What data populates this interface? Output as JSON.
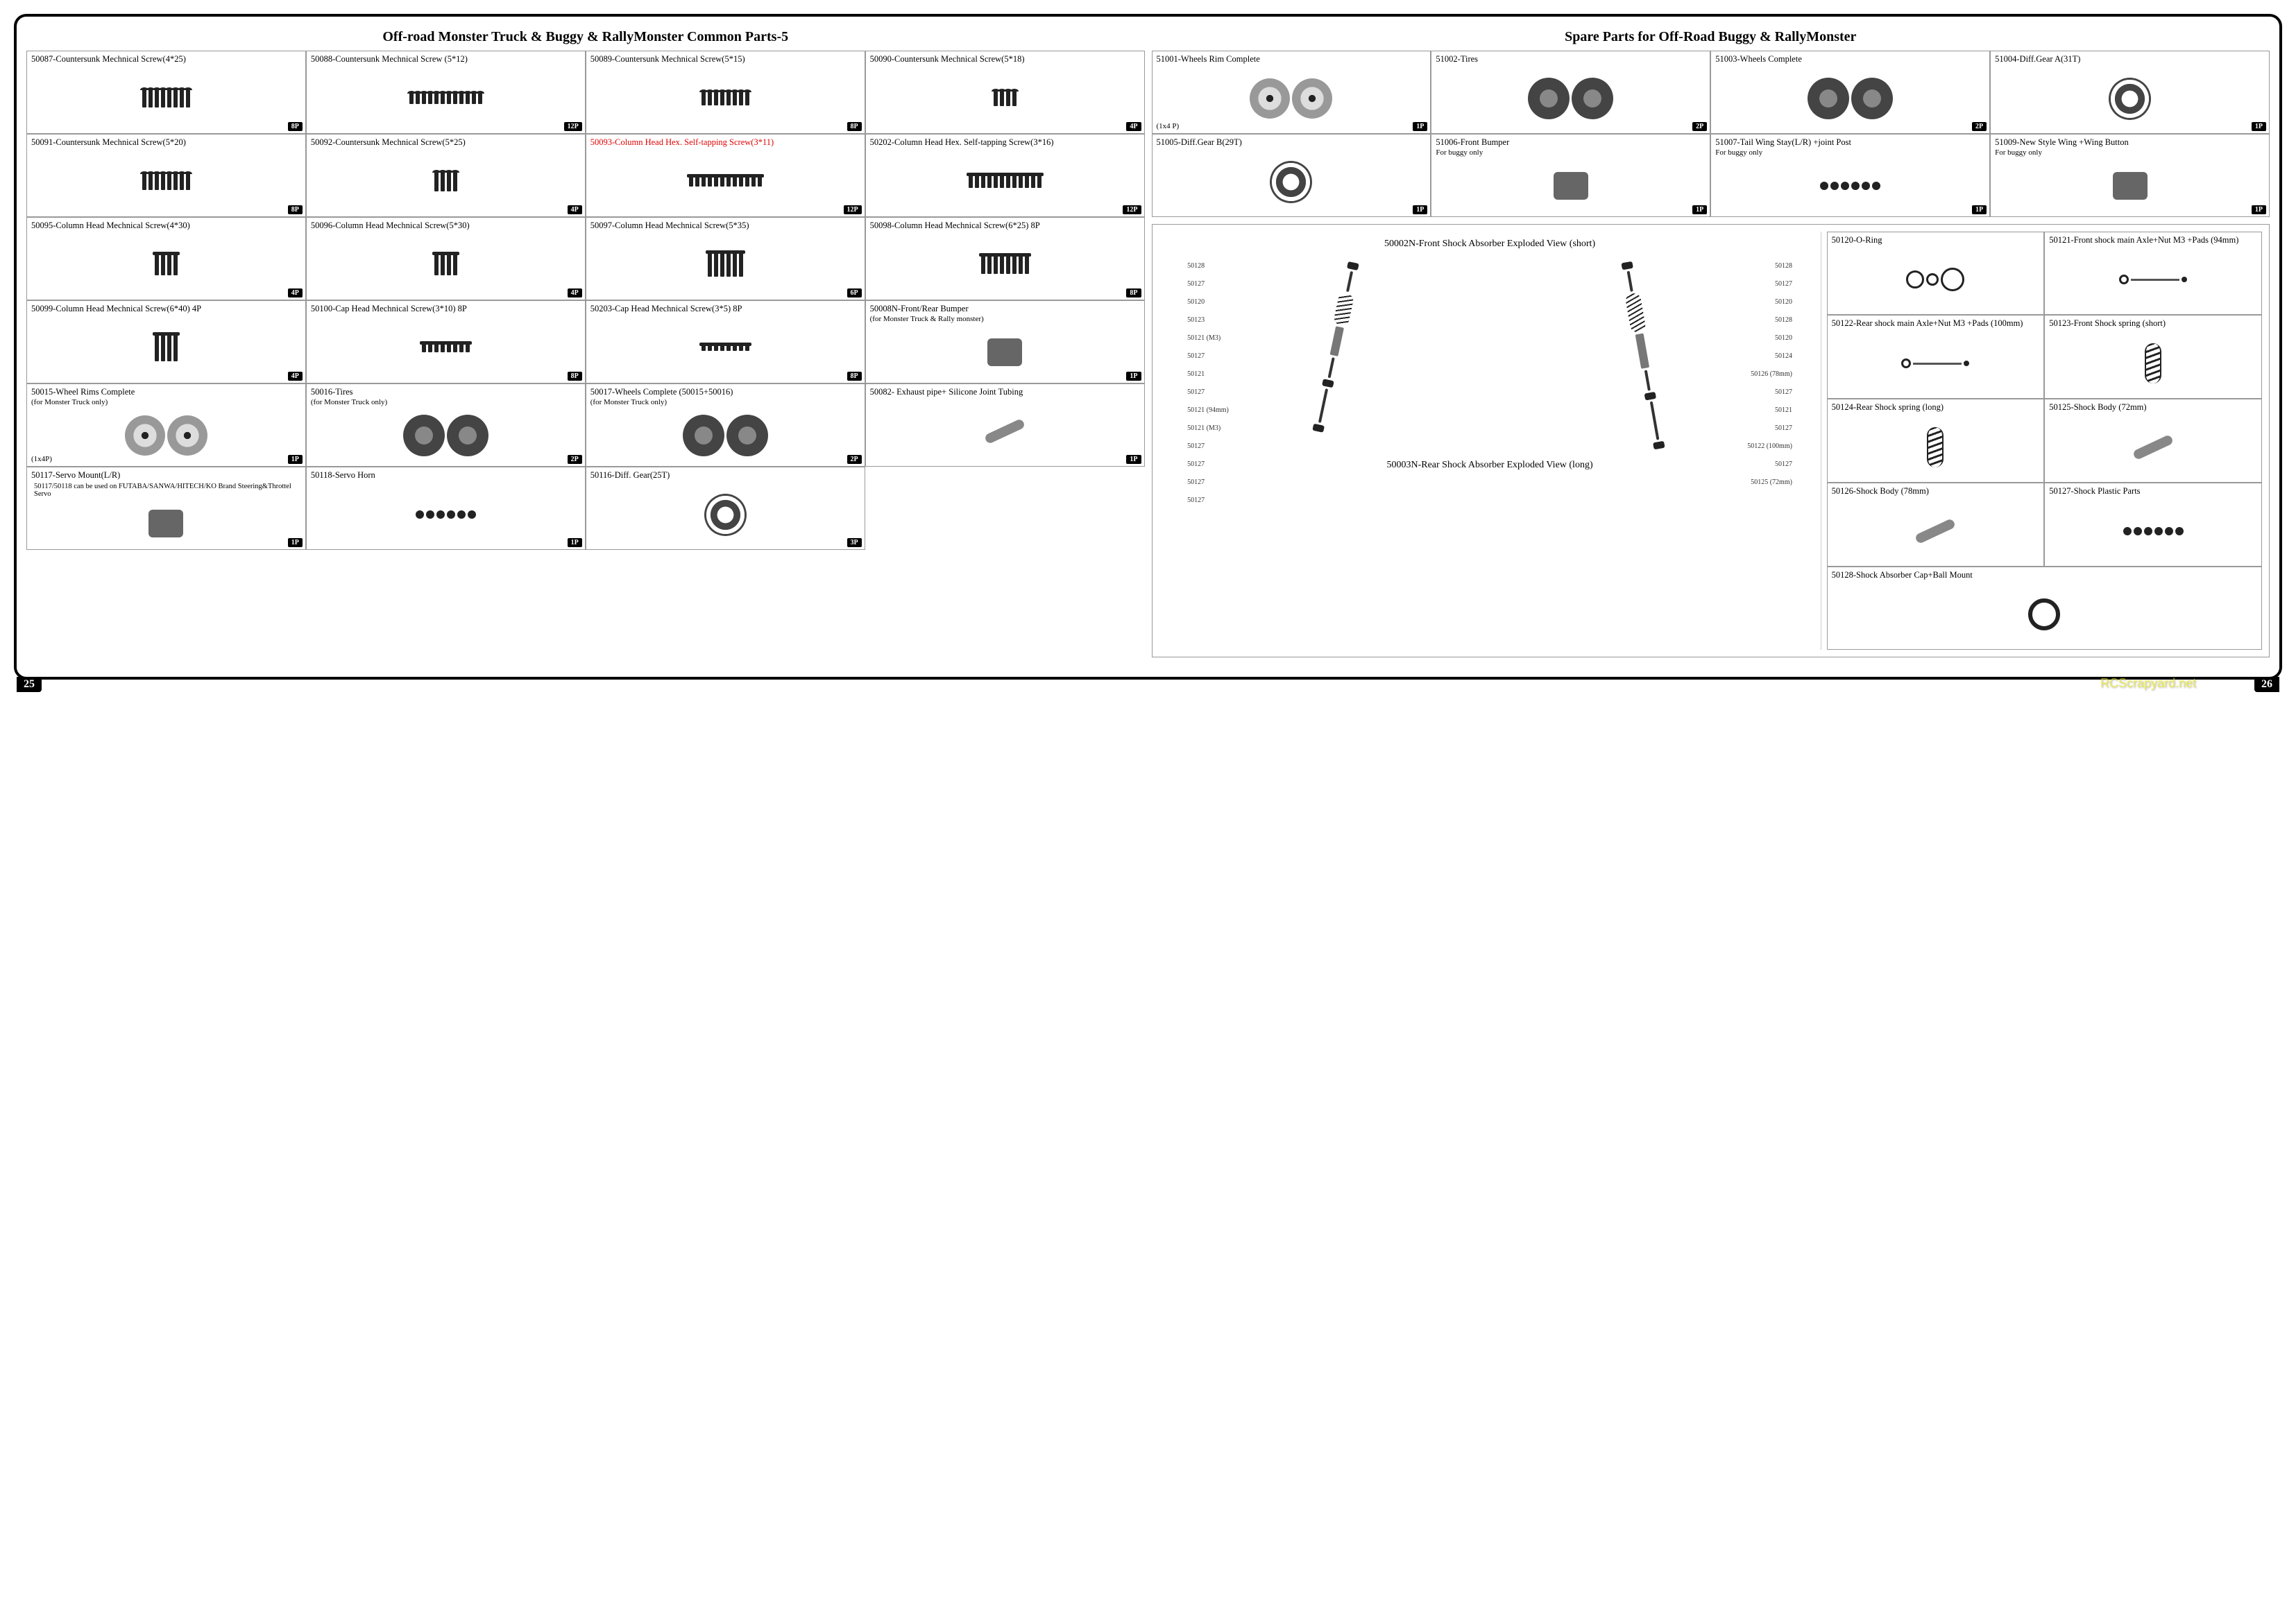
{
  "left": {
    "title": "Off-road Monster Truck & Buggy & RallyMonster Common Parts-5",
    "pagenum": "25",
    "rows": [
      [
        {
          "t": "50087-Countersunk Mechnical Screw(4*25)",
          "q": "8P",
          "kind": "flat",
          "n": 8,
          "h": 26
        },
        {
          "t": "50088-Countersunk Mechnical Screw (5*12)",
          "q": "12P",
          "kind": "flat",
          "n": 12,
          "h": 16
        },
        {
          "t": "50089-Countersunk Mechnical Screw(5*15)",
          "q": "8P",
          "kind": "flat",
          "n": 8,
          "h": 20
        },
        {
          "t": "50090-Countersunk Mechnical Screw(5*18)",
          "q": "4P",
          "kind": "flat",
          "n": 4,
          "h": 22
        }
      ],
      [
        {
          "t": "50091-Countersunk Mechnical Screw(5*20)",
          "q": "8P",
          "kind": "flat",
          "n": 8,
          "h": 24
        },
        {
          "t": "50092-Countersunk Mechnical Screw(5*25)",
          "q": "4P",
          "kind": "flat",
          "n": 4,
          "h": 28
        },
        {
          "t": "50093-Column Head Hex. Self-tapping Screw(3*11)",
          "q": "12P",
          "kind": "hex",
          "n": 12,
          "h": 14,
          "red": true
        },
        {
          "t": "50202-Column Head Hex. Self-tapping Screw(3*16)",
          "q": "12P",
          "kind": "hex",
          "n": 12,
          "h": 18
        }
      ],
      [
        {
          "t": "50095-Column Head Mechnical Screw(4*30)",
          "q": "4P",
          "kind": "hex",
          "n": 4,
          "h": 30
        },
        {
          "t": "50096-Column Head Mechnical Screw(5*30)",
          "q": "4P",
          "kind": "hex",
          "n": 4,
          "h": 30
        },
        {
          "t": "50097-Column Head Mechnical Screw(5*35)",
          "q": "6P",
          "kind": "hex",
          "n": 6,
          "h": 34
        },
        {
          "t": "50098-Column Head Mechnical Screw(6*25)   8P",
          "q": "8P",
          "kind": "hex",
          "n": 8,
          "h": 26
        }
      ],
      [
        {
          "t": "50099-Column  Head Mechnical Screw(6*40)  4P",
          "q": "4P",
          "kind": "hex",
          "n": 4,
          "h": 38
        },
        {
          "t": "50100-Cap  Head Mechnical Screw(3*10)          8P",
          "q": "8P",
          "kind": "hex",
          "n": 8,
          "h": 12
        },
        {
          "t": "50203-Cap Head Mechnical Screw(3*5)             8P",
          "q": "8P",
          "kind": "hex",
          "n": 8,
          "h": 8
        },
        {
          "t": "50008N-Front/Rear Bumper",
          "sub": "(for Monster Truck & Rally monster)",
          "q": "1P",
          "kind": "block"
        }
      ],
      [
        {
          "t": "50015-Wheel Rims Complete",
          "sub": "(for Monster Truck only)",
          "q": "1P",
          "extra": "(1x4P)",
          "kind": "wheel"
        },
        {
          "t": "50016-Tires",
          "sub": "(for Monster Truck only)",
          "q": "2P",
          "kind": "tire"
        },
        {
          "t": "50017-Wheels  Complete (50015+50016)",
          "sub": "(for Monster Truck only)",
          "q": "2P",
          "kind": "tire"
        },
        {
          "t": "50082- Exhaust  pipe+ Silicone  Joint Tubing",
          "q": "1P",
          "kind": "tube"
        }
      ],
      [
        {
          "t": "50117-Servo Mount(L/R)",
          "q": "1P",
          "kind": "block",
          "note": "50117/50118 can be used on FUTABA/SANWA/HITECH/KO Brand Steering&Throttel Servo"
        },
        {
          "t": "50118-Servo Horn",
          "q": "1P",
          "kind": "dots"
        },
        {
          "t": "50116-Diff. Gear(25T)",
          "q": "3P",
          "kind": "gear"
        },
        {
          "t": "",
          "kind": "empty"
        }
      ]
    ]
  },
  "right": {
    "title": "Spare Parts for Off-Road Buggy & RallyMonster",
    "pagenum": "26",
    "top": [
      [
        {
          "t": "51001-Wheels Rim Complete",
          "q": "1P",
          "extra": "(1x4 P)",
          "kind": "wheel"
        },
        {
          "t": "51002-Tires",
          "q": "2P",
          "kind": "tire"
        },
        {
          "t": "51003-Wheels Complete",
          "q": "2P",
          "kind": "tire"
        },
        {
          "t": "51004-Diff.Gear A(31T)",
          "q": "1P",
          "kind": "gear"
        }
      ],
      [
        {
          "t": "51005-Diff.Gear B(29T)",
          "q": "1P",
          "kind": "gear"
        },
        {
          "t": "51006-Front Bumper",
          "sub": "For buggy only",
          "q": "1P",
          "kind": "block"
        },
        {
          "t": "51007-Tail Wing Stay(L/R) +joint Post",
          "sub": "For buggy only",
          "q": "1P",
          "kind": "dots"
        },
        {
          "t": "51009-New Style Wing +Wing Button",
          "sub": "For buggy only",
          "q": "1P",
          "kind": "block"
        }
      ]
    ],
    "exploded": {
      "title_front": "50002N-Front Shock  Absorber Exploded  View (short)",
      "title_rear": "50003N-Rear  Shock  Absorber Exploded  View (long)",
      "labels_front": [
        "50128",
        "50127",
        "50120",
        "50123",
        "50121 (M3)",
        "50127",
        "50121",
        "50127",
        "50121 (94mm)",
        "50121 (M3)",
        "50127",
        "50127",
        "50127",
        "50127"
      ],
      "labels_rear": [
        "50128",
        "50127",
        "50120",
        "50128",
        "50120",
        "50124",
        "50126 (78mm)",
        "50127",
        "50121",
        "50127",
        "50122 (100mm)",
        "50127",
        "50125 (72mm)"
      ],
      "side": [
        {
          "t": "50120-O-Ring",
          "kind": "rings"
        },
        {
          "t": "50121-Front shock main Axle+Nut M3 +Pads   (94mm)",
          "kind": "rod"
        },
        {
          "t": "50122-Rear shock main Axle+Nut M3 +Pads   (100mm)",
          "kind": "rod"
        },
        {
          "t": "50123-Front Shock spring      (short)",
          "kind": "spring"
        },
        {
          "t": "50124-Rear Shock spring   (long)",
          "kind": "spring"
        },
        {
          "t": "50125-Shock Body (72mm)",
          "kind": "tube"
        },
        {
          "t": "50126-Shock Body (78mm)",
          "kind": "tube"
        },
        {
          "t": "50127-Shock Plastic Parts",
          "kind": "dots"
        },
        {
          "t": "50128-Shock Absorber Cap+Ball Mount",
          "kind": "ring",
          "span": 2
        }
      ]
    }
  },
  "watermark": "RCScrapyard.net"
}
